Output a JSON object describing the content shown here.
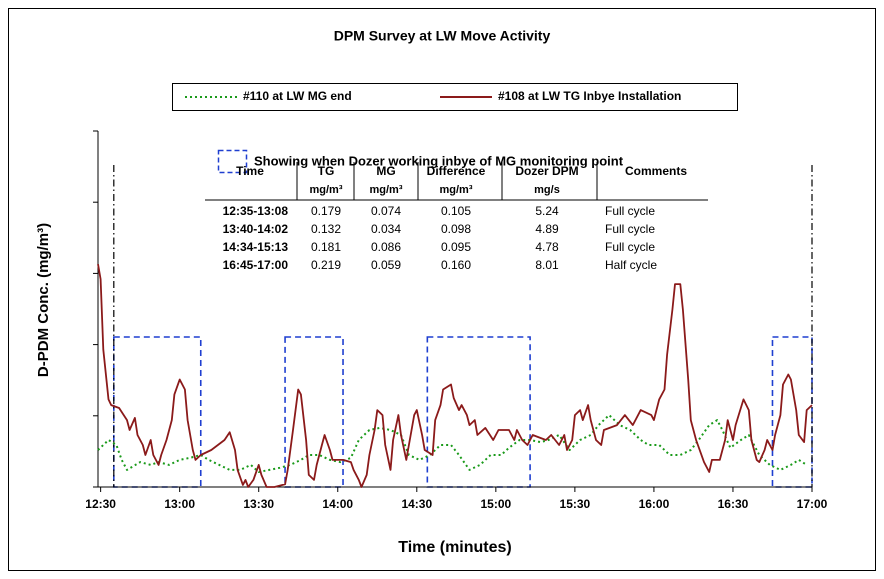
{
  "chart_data": {
    "type": "line",
    "title": "DPM Survey at LW Move Activity",
    "x_label": "Time (minutes)",
    "y_label": "D-PDM Conc. (mg/m³)",
    "note": "Showing when Dozer working inbye of MG monitoring point",
    "xlim": [
      749,
      1020
    ],
    "xticks": [
      {
        "value": 750,
        "label": "12:30"
      },
      {
        "value": 780,
        "label": "13:00"
      },
      {
        "value": 810,
        "label": "13:30"
      },
      {
        "value": 840,
        "label": "14:00"
      },
      {
        "value": 870,
        "label": "14:30"
      },
      {
        "value": 900,
        "label": "15:00"
      },
      {
        "value": 930,
        "label": "15:30"
      },
      {
        "value": 960,
        "label": "16:00"
      },
      {
        "value": 990,
        "label": "16:30"
      },
      {
        "value": 1020,
        "label": "17:00"
      }
    ],
    "ylim": [
      0,
      0.5
    ],
    "yticks": [
      0,
      0.1,
      0.2,
      0.3,
      0.4,
      0.5
    ],
    "series": [
      {
        "name": "#110 at LW MG end",
        "color": "#1a9a1a",
        "style": "dotted",
        "x": [
          749,
          751,
          753,
          756,
          758,
          760,
          765,
          769,
          772,
          776,
          780,
          784,
          788,
          791,
          795,
          799,
          803,
          807,
          810,
          814,
          818,
          822,
          826,
          829,
          833,
          837,
          841,
          845,
          848,
          852,
          856,
          860,
          864,
          867,
          871,
          875,
          879,
          883,
          886,
          890,
          894,
          898,
          902,
          905,
          909,
          913,
          917,
          920,
          924,
          928,
          932,
          936,
          939,
          943,
          947,
          951,
          955,
          958,
          962,
          966,
          970,
          974,
          977,
          981,
          984,
          986,
          989,
          993,
          996,
          1000,
          1004,
          1008,
          1012,
          1015,
          1018
        ],
        "values": [
          0.052,
          0.059,
          0.066,
          0.059,
          0.038,
          0.024,
          0.035,
          0.031,
          0.035,
          0.031,
          0.038,
          0.041,
          0.045,
          0.038,
          0.031,
          0.024,
          0.024,
          0.031,
          0.021,
          0.024,
          0.027,
          0.031,
          0.038,
          0.045,
          0.045,
          0.038,
          0.035,
          0.041,
          0.066,
          0.08,
          0.083,
          0.08,
          0.073,
          0.045,
          0.038,
          0.045,
          0.059,
          0.059,
          0.045,
          0.024,
          0.031,
          0.045,
          0.045,
          0.055,
          0.066,
          0.066,
          0.063,
          0.066,
          0.073,
          0.052,
          0.066,
          0.073,
          0.087,
          0.101,
          0.087,
          0.08,
          0.066,
          0.059,
          0.059,
          0.045,
          0.045,
          0.052,
          0.066,
          0.087,
          0.094,
          0.08,
          0.055,
          0.066,
          0.073,
          0.045,
          0.031,
          0.024,
          0.031,
          0.038,
          0.031
        ]
      },
      {
        "name": "#108 at LW TG Inbye Installation",
        "color": "#8b1a1a",
        "style": "solid",
        "x": [
          749,
          750,
          751,
          753,
          754,
          757,
          760,
          761,
          763,
          764,
          766,
          767,
          769,
          770,
          772,
          773,
          775,
          777,
          778,
          780,
          782,
          783,
          785,
          786,
          788,
          792,
          797,
          799,
          801,
          802,
          804,
          805,
          806,
          808,
          810,
          811,
          813,
          816,
          820,
          821,
          823,
          825,
          826,
          828,
          829,
          831,
          832,
          834,
          835,
          837,
          838,
          842,
          845,
          846,
          848,
          849,
          851,
          852,
          854,
          855,
          857,
          858,
          860,
          861,
          863,
          864,
          866,
          867,
          869,
          870,
          872,
          873,
          876,
          877,
          879,
          880,
          883,
          884,
          886,
          887,
          889,
          890,
          892,
          893,
          896,
          899,
          901,
          905,
          907,
          908,
          910,
          912,
          914,
          919,
          921,
          924,
          926,
          927,
          929,
          930,
          932,
          933,
          935,
          936,
          938,
          940,
          941,
          946,
          949,
          952,
          955,
          959,
          960,
          962,
          964,
          965,
          967,
          968,
          970,
          971,
          973,
          974,
          976,
          979,
          981,
          982,
          985,
          987,
          988,
          990,
          991,
          994,
          996,
          997,
          999,
          1000,
          1002,
          1003,
          1005,
          1006,
          1008,
          1009,
          1011,
          1012,
          1014,
          1015,
          1017,
          1018,
          1020
        ],
        "values": [
          0.313,
          0.292,
          0.193,
          0.123,
          0.115,
          0.111,
          0.094,
          0.08,
          0.097,
          0.073,
          0.059,
          0.045,
          0.066,
          0.045,
          0.031,
          0.045,
          0.066,
          0.094,
          0.13,
          0.151,
          0.137,
          0.094,
          0.052,
          0.038,
          0.045,
          0.052,
          0.066,
          0.077,
          0.052,
          0.024,
          0.003,
          0.01,
          0,
          0.01,
          0.031,
          0.017,
          0,
          0,
          0.004,
          0.024,
          0.08,
          0.137,
          0.13,
          0.066,
          0.017,
          0.01,
          0.031,
          0.059,
          0.073,
          0.052,
          0.038,
          0.038,
          0.035,
          0.024,
          0.01,
          0,
          0.017,
          0.045,
          0.08,
          0.108,
          0.101,
          0.059,
          0.024,
          0.066,
          0.101,
          0.073,
          0.038,
          0.059,
          0.101,
          0.108,
          0.073,
          0.052,
          0.045,
          0.094,
          0.115,
          0.137,
          0.144,
          0.125,
          0.108,
          0.115,
          0.101,
          0.087,
          0.094,
          0.073,
          0.083,
          0.066,
          0.08,
          0.08,
          0.066,
          0.08,
          0.066,
          0.059,
          0.073,
          0.066,
          0.073,
          0.059,
          0.073,
          0.052,
          0.066,
          0.101,
          0.108,
          0.094,
          0.115,
          0.094,
          0.066,
          0.059,
          0.08,
          0.087,
          0.101,
          0.087,
          0.108,
          0.101,
          0.094,
          0.123,
          0.137,
          0.186,
          0.249,
          0.285,
          0.285,
          0.249,
          0.151,
          0.094,
          0.066,
          0.035,
          0.021,
          0.038,
          0.038,
          0.066,
          0.094,
          0.066,
          0.087,
          0.123,
          0.108,
          0.066,
          0.038,
          0.035,
          0.052,
          0.066,
          0.052,
          0.073,
          0.101,
          0.144,
          0.158,
          0.151,
          0.108,
          0.073,
          0.063,
          0.108,
          0.115
        ]
      }
    ],
    "table": {
      "columns": [
        {
          "name": "Time"
        },
        {
          "name": "TG",
          "unit": "mg/m³"
        },
        {
          "name": "MG",
          "unit": "mg/m³"
        },
        {
          "name": "Difference",
          "unit": "mg/m³"
        },
        {
          "name": "Dozer DPM",
          "unit": "mg/s"
        },
        {
          "name": "Comments"
        }
      ],
      "rows": [
        [
          "12:35-13:08",
          "0.179",
          "0.074",
          "0.105",
          "5.24",
          "Full cycle"
        ],
        [
          "13:40-14:02",
          "0.132",
          "0.034",
          "0.098",
          "4.89",
          "Full cycle"
        ],
        [
          "14:34-15:13",
          "0.181",
          "0.086",
          "0.095",
          "4.78",
          "Full cycle"
        ],
        [
          "16:45-17:00",
          "0.219",
          "0.059",
          "0.160",
          "8.01",
          "Half cycle"
        ]
      ]
    }
  }
}
